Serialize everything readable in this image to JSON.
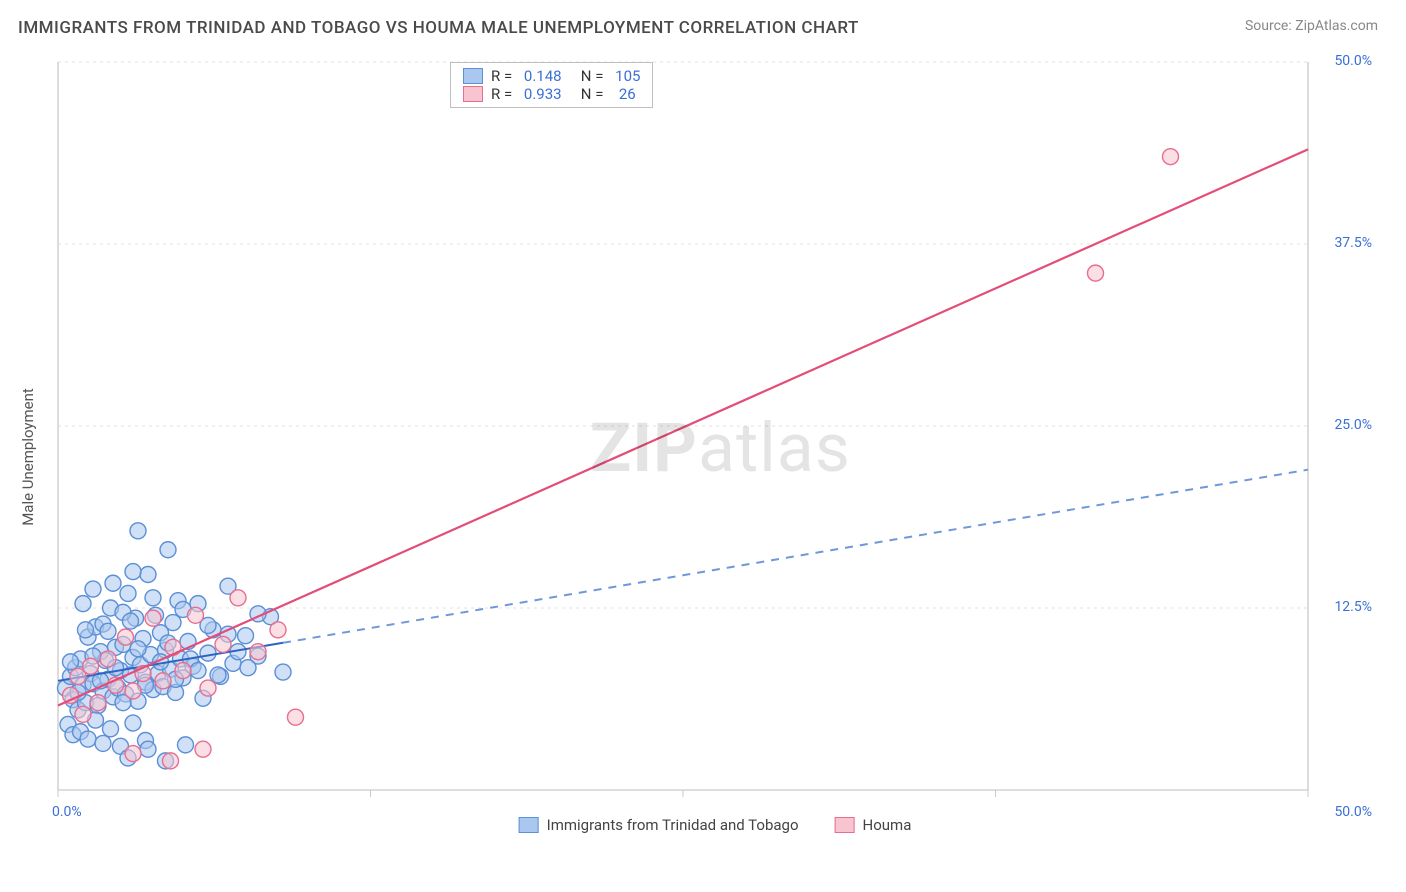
{
  "title": "IMMIGRANTS FROM TRINIDAD AND TOBAGO VS HOUMA MALE UNEMPLOYMENT CORRELATION CHART",
  "source": "Source: ZipAtlas.com",
  "y_axis_label": "Male Unemployment",
  "watermark_bold": "ZIP",
  "watermark_light": "atlas",
  "legend_top": {
    "rows": [
      {
        "swatch_fill": "#a9c7ef",
        "swatch_border": "#5b8fd6",
        "r_label": "R =",
        "r_val": "0.148",
        "n_label": "N =",
        "n_val": "105"
      },
      {
        "swatch_fill": "#f7c4d0",
        "swatch_border": "#e66f91",
        "r_label": "R =",
        "r_val": "0.933",
        "n_label": "N =",
        "n_val": " 26"
      }
    ]
  },
  "legend_bottom": [
    {
      "swatch_fill": "#a9c7ef",
      "swatch_border": "#5b8fd6",
      "label": "Immigrants from Trinidad and Tobago"
    },
    {
      "swatch_fill": "#f7c4d0",
      "swatch_border": "#e66f91",
      "label": "Houma"
    }
  ],
  "chart": {
    "type": "scatter",
    "xlim": [
      0,
      50
    ],
    "ylim": [
      0,
      50
    ],
    "x_ticks": [
      0,
      12.5,
      25,
      37.5,
      50
    ],
    "y_ticks": [
      12.5,
      25,
      37.5,
      50
    ],
    "x_tick_labels": [
      "0.0%",
      "",
      "",
      "",
      "50.0%"
    ],
    "y_tick_labels": [
      "12.5%",
      "25.0%",
      "37.5%",
      "50.0%"
    ],
    "grid_color": "#e2e2e2",
    "axis_color": "#c9c9c9",
    "background_color": "#ffffff",
    "marker_radius": 8,
    "marker_stroke_width": 1.4,
    "series": [
      {
        "name": "Immigrants from Trinidad and Tobago",
        "fill": "#a9c7ef",
        "stroke": "#5b8fd6",
        "fill_opacity": 0.55,
        "trend": {
          "solid_until_x": 9,
          "dashed_after": true,
          "color_solid": "#2f63c4",
          "color_dash": "#6f98d8",
          "y_at_0": 7.5,
          "y_at_50": 22.0,
          "width": 2
        },
        "points": [
          [
            0.3,
            7.0
          ],
          [
            0.5,
            7.8
          ],
          [
            0.6,
            6.2
          ],
          [
            0.7,
            8.4
          ],
          [
            0.8,
            5.5
          ],
          [
            0.9,
            9.0
          ],
          [
            1.0,
            7.2
          ],
          [
            1.1,
            6.0
          ],
          [
            1.2,
            10.5
          ],
          [
            1.3,
            8.0
          ],
          [
            1.4,
            7.3
          ],
          [
            1.5,
            11.2
          ],
          [
            1.6,
            5.8
          ],
          [
            1.7,
            9.5
          ],
          [
            1.8,
            6.8
          ],
          [
            1.9,
            8.9
          ],
          [
            2.0,
            7.6
          ],
          [
            2.1,
            12.5
          ],
          [
            2.2,
            6.4
          ],
          [
            2.3,
            9.8
          ],
          [
            2.4,
            7.0
          ],
          [
            2.5,
            8.2
          ],
          [
            2.6,
            10.0
          ],
          [
            2.7,
            6.6
          ],
          [
            2.8,
            13.5
          ],
          [
            2.9,
            7.9
          ],
          [
            3.0,
            9.1
          ],
          [
            3.1,
            11.8
          ],
          [
            3.2,
            6.1
          ],
          [
            3.3,
            8.6
          ],
          [
            3.4,
            10.4
          ],
          [
            3.5,
            7.4
          ],
          [
            3.6,
            14.8
          ],
          [
            3.7,
            9.3
          ],
          [
            3.8,
            6.9
          ],
          [
            3.9,
            12.0
          ],
          [
            4.0,
            8.0
          ],
          [
            4.1,
            10.8
          ],
          [
            4.2,
            7.1
          ],
          [
            4.3,
            9.6
          ],
          [
            4.4,
            16.5
          ],
          [
            4.5,
            8.3
          ],
          [
            4.6,
            11.5
          ],
          [
            4.7,
            6.7
          ],
          [
            4.8,
            13.0
          ],
          [
            4.9,
            9.0
          ],
          [
            5.0,
            7.7
          ],
          [
            5.2,
            10.2
          ],
          [
            5.4,
            8.5
          ],
          [
            5.6,
            12.8
          ],
          [
            5.8,
            6.3
          ],
          [
            6.0,
            9.4
          ],
          [
            6.2,
            11.0
          ],
          [
            6.5,
            7.8
          ],
          [
            6.8,
            14.0
          ],
          [
            7.0,
            8.7
          ],
          [
            7.5,
            10.6
          ],
          [
            8.0,
            9.2
          ],
          [
            8.5,
            11.9
          ],
          [
            9.0,
            8.1
          ],
          [
            0.4,
            4.5
          ],
          [
            0.6,
            3.8
          ],
          [
            0.9,
            4.0
          ],
          [
            1.2,
            3.5
          ],
          [
            1.5,
            4.8
          ],
          [
            1.8,
            3.2
          ],
          [
            2.1,
            4.2
          ],
          [
            2.5,
            3.0
          ],
          [
            3.0,
            4.6
          ],
          [
            3.5,
            3.4
          ],
          [
            1.0,
            12.8
          ],
          [
            1.4,
            13.8
          ],
          [
            1.8,
            11.4
          ],
          [
            2.2,
            14.2
          ],
          [
            2.6,
            12.2
          ],
          [
            3.0,
            15.0
          ],
          [
            0.5,
            8.8
          ],
          [
            0.8,
            6.7
          ],
          [
            1.1,
            11.0
          ],
          [
            1.4,
            9.2
          ],
          [
            1.7,
            7.5
          ],
          [
            2.0,
            10.9
          ],
          [
            2.3,
            8.4
          ],
          [
            2.6,
            6.0
          ],
          [
            2.9,
            11.6
          ],
          [
            3.2,
            9.7
          ],
          [
            3.5,
            7.2
          ],
          [
            3.8,
            13.2
          ],
          [
            4.1,
            8.8
          ],
          [
            4.4,
            10.1
          ],
          [
            4.7,
            7.6
          ],
          [
            5.0,
            12.4
          ],
          [
            5.3,
            9.0
          ],
          [
            5.6,
            8.2
          ],
          [
            6.0,
            11.3
          ],
          [
            6.4,
            7.9
          ],
          [
            6.8,
            10.7
          ],
          [
            7.2,
            9.5
          ],
          [
            7.6,
            8.4
          ],
          [
            8.0,
            12.1
          ],
          [
            3.2,
            17.8
          ],
          [
            2.8,
            2.2
          ],
          [
            3.6,
            2.8
          ],
          [
            4.3,
            2.0
          ],
          [
            5.1,
            3.1
          ]
        ]
      },
      {
        "name": "Houma",
        "fill": "#f7c4d0",
        "stroke": "#e66f91",
        "fill_opacity": 0.55,
        "trend": {
          "solid_until_x": 50,
          "dashed_after": false,
          "color_solid": "#e34d77",
          "y_at_0": 5.8,
          "y_at_50": 44.0,
          "width": 2.2
        },
        "points": [
          [
            0.5,
            6.5
          ],
          [
            0.8,
            7.8
          ],
          [
            1.0,
            5.2
          ],
          [
            1.3,
            8.5
          ],
          [
            1.6,
            6.0
          ],
          [
            2.0,
            9.0
          ],
          [
            2.3,
            7.2
          ],
          [
            2.7,
            10.5
          ],
          [
            3.0,
            6.8
          ],
          [
            3.4,
            8.0
          ],
          [
            3.8,
            11.8
          ],
          [
            4.2,
            7.5
          ],
          [
            4.6,
            9.8
          ],
          [
            5.0,
            8.2
          ],
          [
            5.5,
            12.0
          ],
          [
            6.0,
            7.0
          ],
          [
            6.6,
            10.0
          ],
          [
            7.2,
            13.2
          ],
          [
            8.0,
            9.5
          ],
          [
            8.8,
            11.0
          ],
          [
            9.5,
            5.0
          ],
          [
            3.0,
            2.5
          ],
          [
            4.5,
            2.0
          ],
          [
            5.8,
            2.8
          ],
          [
            41.5,
            35.5
          ],
          [
            44.5,
            43.5
          ]
        ]
      }
    ]
  }
}
